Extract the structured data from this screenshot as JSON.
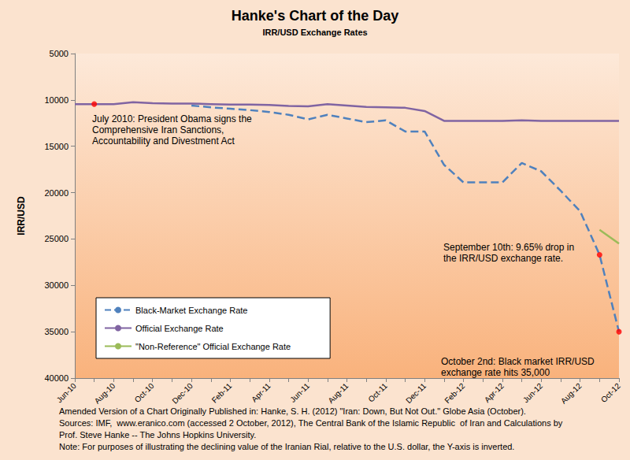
{
  "chart_data": {
    "type": "line",
    "title": "Hanke's Chart of the Day",
    "subtitle": "IRR/USD Exchange Rates",
    "y_label": "IRR/USD",
    "categories": [
      "Jun-10",
      null,
      "Aug-10",
      null,
      "Oct-10",
      null,
      "Dec-10",
      null,
      "Feb-11",
      null,
      "Apr-11",
      null,
      "Jun-11",
      null,
      "Aug-11",
      null,
      "Oct-11",
      null,
      "Dec-11",
      null,
      "Feb-12",
      null,
      "Apr-12",
      null,
      "Jun-12",
      null,
      "Aug-12",
      null,
      "Oct-12"
    ],
    "series": [
      {
        "name": "Black-Market Exchange Rate",
        "color": "#4f81bd",
        "line_style": "dashed",
        "values": [
          null,
          null,
          null,
          null,
          null,
          null,
          10600,
          10800,
          10950,
          11100,
          11300,
          11600,
          12100,
          11600,
          12000,
          12400,
          12200,
          13400,
          13400,
          17000,
          18900,
          18900,
          18900,
          16800,
          17700,
          19800,
          22000,
          26700,
          35000
        ]
      },
      {
        "name": "Official Exchange Rate",
        "color": "#8064a2",
        "line_style": "solid",
        "values": [
          10450,
          10450,
          10450,
          10250,
          10350,
          10400,
          10400,
          10450,
          10500,
          10500,
          10550,
          10650,
          10700,
          10450,
          10600,
          10750,
          10800,
          10850,
          11200,
          12260,
          12260,
          12260,
          12260,
          12200,
          12260,
          12260,
          12260,
          12260,
          12260
        ]
      },
      {
        "name": "\"Non-Reference\" Official Exchange Rate",
        "color": "#9bbb59",
        "line_style": "solid",
        "values": [
          null,
          null,
          null,
          null,
          null,
          null,
          null,
          null,
          null,
          null,
          null,
          null,
          null,
          null,
          null,
          null,
          null,
          null,
          null,
          null,
          null,
          null,
          null,
          null,
          null,
          null,
          null,
          24000,
          25500
        ]
      }
    ],
    "ylim": [
      5000,
      40000
    ],
    "yticks": [
      5000,
      10000,
      15000,
      20000,
      25000,
      30000,
      35000,
      40000
    ],
    "grid": false,
    "legend": "lower left",
    "annotations": [
      {
        "text": "July 2010: President Obama signs the\nComprehensive Iran Sanctions,\nAccountability and Divestment Act",
        "series": "Official Exchange Rate",
        "point": 1,
        "color": "#ff0000"
      },
      {
        "text": "September 10th: 9.65% drop in\nthe IRR/USD exchange rate.",
        "series": "Black-Market Exchange Rate",
        "point": 27,
        "color": "#ff0000"
      },
      {
        "text": "October 2nd: Black market IRR/USD\nexchange rate hits 35,000",
        "series": "Black-Market Exchange Rate",
        "point": 28,
        "color": "#ff0000"
      }
    ],
    "notes": [
      "Amended Version of a Chart Originally Published in: Hanke, S. H. (2012) \"Iran: Down, But Not Out.\" Globe Asia (October).",
      "Sources: IMF,  www.eranico.com (accessed 2 October, 2012), The Central Bank of the Islamic Republic  of Iran and Calculations by",
      "Prof. Steve Hanke -- The Johns Hopkins University.",
      "Note: For purposes of illustrating the declining value of the Iranian Rial, relative to the U.S. dollar, the Y-axis is inverted."
    ]
  }
}
